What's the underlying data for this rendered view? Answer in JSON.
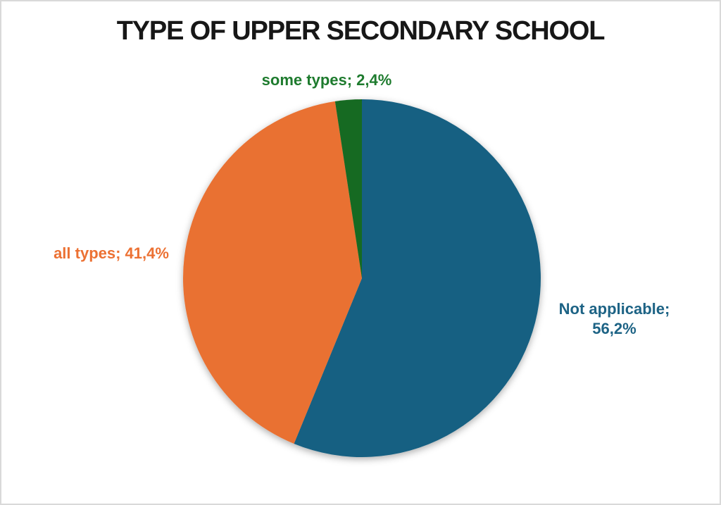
{
  "page": {
    "background_color": "#ffffff",
    "border_color": "#d9d9d9"
  },
  "chart_data": {
    "type": "pie",
    "title": "TYPE OF UPPER SECONDARY SCHOOL",
    "title_color": "#171717",
    "start_angle_deg": 0,
    "direction": "clockwise",
    "legend_position": "none",
    "grid": false,
    "label_style": "outside category labels with value, comma decimal separator",
    "slices": [
      {
        "name": "Not applicable",
        "value": 56.2,
        "label": "Not applicable; 56,2%",
        "color": "#156082",
        "label_color": "#1d6385"
      },
      {
        "name": "all types",
        "value": 41.4,
        "label": "all types; 41,4%",
        "color": "#E97132",
        "label_color": "#ec7133"
      },
      {
        "name": "some types",
        "value": 2.4,
        "label": "some types; 2,4%",
        "color": "#196B24",
        "label_color": "#1e7b2e"
      }
    ]
  }
}
